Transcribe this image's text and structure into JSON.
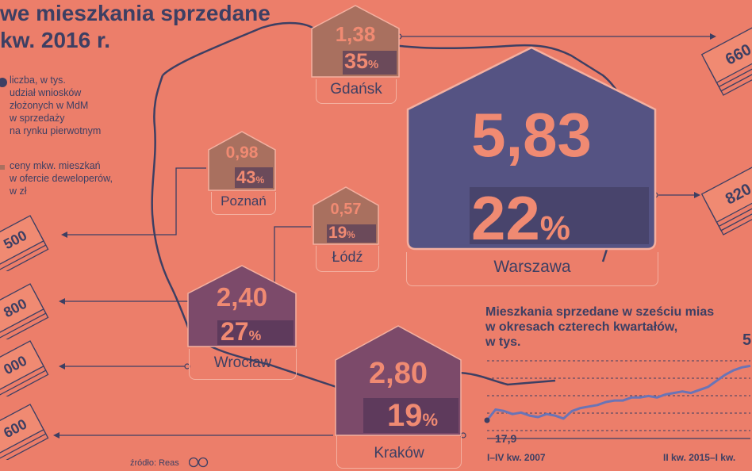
{
  "title_line1": "we mieszkania sprzedane",
  "title_line2": "kw. 2016 r.",
  "legend": {
    "line1": "liczba, w tys.",
    "line2": "udział wniosków",
    "line3": "złożonych w MdM",
    "line4": "w sprzedaży",
    "line5": "na rynku pierwotnym",
    "line6": "ceny mkw. mieszkań",
    "line7": "w ofercie deweloperów,",
    "line8": "w zł"
  },
  "cities": {
    "gdansk": {
      "name": "Gdańsk",
      "count": "1,38",
      "share": "35",
      "share_value": 35
    },
    "poznan": {
      "name": "Poznań",
      "count": "0,98",
      "share": "43",
      "share_value": 43
    },
    "lodz": {
      "name": "Łódź",
      "count": "0,57",
      "share": "19",
      "share_value": 19
    },
    "warszawa": {
      "name": "Warszawa",
      "count": "5,83",
      "share": "22",
      "share_value": 22
    },
    "wroclaw": {
      "name": "Wrocław",
      "count": "2,40",
      "share": "27",
      "share_value": 27
    },
    "krakow": {
      "name": "Kraków",
      "count": "2,80",
      "share": "19",
      "share_value": 19
    }
  },
  "pct_sign": "%",
  "prices": {
    "gdansk_partial": "660",
    "warszawa_partial": "820",
    "left1_partial": "500",
    "left2_partial": "800",
    "left3_partial": "000",
    "left4_partial": "600"
  },
  "chart_data": {
    "type": "line",
    "title_line1": "Mieszkania sprzedane w sześciu mias",
    "title_line2": "w okresach czterech kwartałów,",
    "title_line3": "w tys.",
    "x_start_label": "I–IV kw. 2007",
    "x_end_label": "II kw. 2015–I kw.",
    "first_value_label": "17,9",
    "last_value_label_partial": "5",
    "values": [
      17.9,
      25,
      24,
      22,
      23,
      21,
      20,
      22,
      21,
      19,
      24,
      26,
      27,
      28,
      30,
      31,
      31,
      33,
      33,
      34,
      33,
      35,
      36,
      37,
      36,
      38,
      40,
      44,
      48,
      51,
      53,
      54
    ]
  },
  "colors": {
    "background": "#ec7e6a",
    "navy": "#3d3f63",
    "brown": "#a9705f",
    "purple": "#7c4a6a",
    "accent": "#f08a72",
    "line": "#6a74b6"
  },
  "source": "źródło: Reas"
}
